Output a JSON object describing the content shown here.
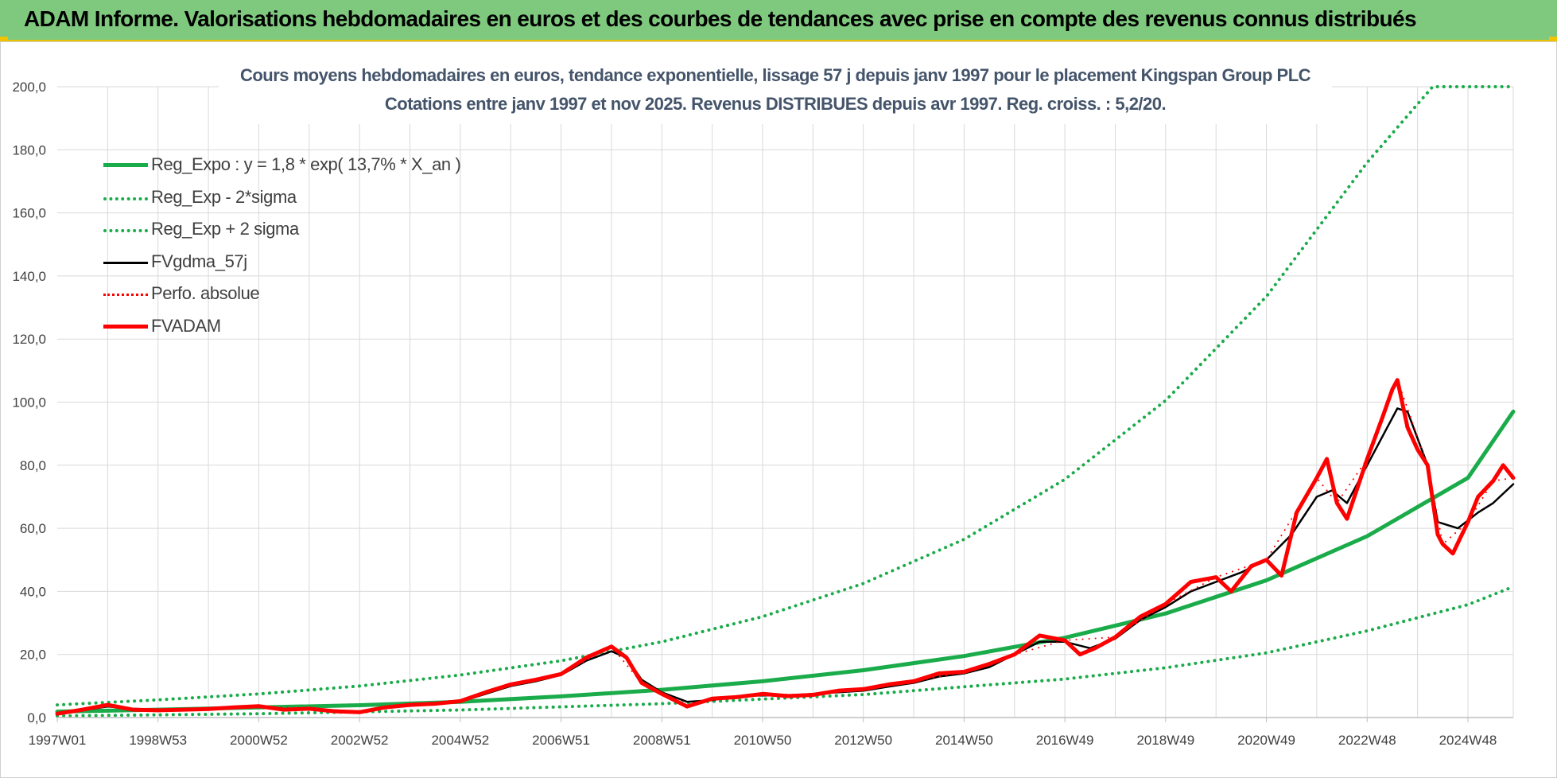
{
  "header": {
    "title": "ADAM Informe. Valorisations hebdomadaires en euros et des courbes de tendances avec prise en compte des revenus connus distribués"
  },
  "colors": {
    "banner": "#7ec97e",
    "reg_expo": "#1aab4a",
    "fvgdma": "#000000",
    "fvadam": "#ff0000",
    "perfo": "#ff0000",
    "grid": "#d9d9d9"
  },
  "chart_data": {
    "type": "line",
    "title": "Cours moyens hebdomadaires en euros, tendance exponentielle, lissage 57 j depuis janv 1997 pour le placement Kingspan Group PLC",
    "subtitle": "Cotations entre janv 1997 et nov 2025. Revenus DISTRIBUES depuis avr 1997. Reg. croiss. : 5,2/20.",
    "xlabel": "",
    "ylabel": "",
    "ylim": [
      0,
      200
    ],
    "xlim": [
      1997.0,
      2025.9
    ],
    "grid": true,
    "legend_position": "top-left",
    "yticks": [
      "0,0",
      "20,0",
      "40,0",
      "60,0",
      "80,0",
      "100,0",
      "120,0",
      "140,0",
      "160,0",
      "180,0",
      "200,0"
    ],
    "xticks": [
      {
        "label": "1997W01",
        "x": 1997.0
      },
      {
        "label": "1998W53",
        "x": 1999.0
      },
      {
        "label": "2000W52",
        "x": 2001.0
      },
      {
        "label": "2002W52",
        "x": 2003.0
      },
      {
        "label": "2004W52",
        "x": 2005.0
      },
      {
        "label": "2006W51",
        "x": 2007.0
      },
      {
        "label": "2008W51",
        "x": 2009.0
      },
      {
        "label": "2010W50",
        "x": 2011.0
      },
      {
        "label": "2012W50",
        "x": 2013.0
      },
      {
        "label": "2014W50",
        "x": 2015.0
      },
      {
        "label": "2016W49",
        "x": 2017.0
      },
      {
        "label": "2018W49",
        "x": 2019.0
      },
      {
        "label": "2020W49",
        "x": 2021.0
      },
      {
        "label": "2022W48",
        "x": 2023.0
      },
      {
        "label": "2024W48",
        "x": 2025.0
      }
    ],
    "series": [
      {
        "name": "Reg_Expo : y = 1,8 * exp( 13,7% *  X_an )",
        "style": "solid-thick",
        "color": "#1aab4a",
        "points": [
          [
            1997.0,
            1.9
          ],
          [
            1999,
            2.5
          ],
          [
            2001,
            3.2
          ],
          [
            2003,
            3.9
          ],
          [
            2005,
            5.0
          ],
          [
            2007,
            6.7
          ],
          [
            2009,
            8.8
          ],
          [
            2011,
            11.5
          ],
          [
            2013,
            15.0
          ],
          [
            2015,
            19.5
          ],
          [
            2017,
            25.3
          ],
          [
            2019,
            33.0
          ],
          [
            2021,
            43.5
          ],
          [
            2023,
            57.5
          ],
          [
            2025,
            76.0
          ],
          [
            2025.9,
            97.0
          ]
        ]
      },
      {
        "name": "Reg_Exp - 2*sigma",
        "style": "dotted",
        "color": "#1aab4a",
        "points": [
          [
            1997.0,
            0.5
          ],
          [
            2001,
            1.2
          ],
          [
            2005,
            2.4
          ],
          [
            2009,
            4.4
          ],
          [
            2013,
            7.3
          ],
          [
            2017,
            12.2
          ],
          [
            2019,
            15.8
          ],
          [
            2021,
            20.5
          ],
          [
            2023,
            27.5
          ],
          [
            2025,
            35.8
          ],
          [
            2025.9,
            41.5
          ]
        ]
      },
      {
        "name": "Reg_Exp + 2 sigma",
        "style": "dotted",
        "color": "#1aab4a",
        "points": [
          [
            1997.0,
            4.0
          ],
          [
            1999,
            5.6
          ],
          [
            2001,
            7.5
          ],
          [
            2003,
            10.0
          ],
          [
            2005,
            13.5
          ],
          [
            2007,
            18.0
          ],
          [
            2009,
            24.0
          ],
          [
            2011,
            32.0
          ],
          [
            2013,
            42.5
          ],
          [
            2015,
            56.5
          ],
          [
            2017,
            75.5
          ],
          [
            2019,
            100.5
          ],
          [
            2021,
            133.5
          ],
          [
            2023,
            176.0
          ],
          [
            2024.3,
            200.0
          ],
          [
            2025.9,
            200.0
          ]
        ]
      },
      {
        "name": "FVgdma_57j",
        "style": "solid",
        "color": "#000000",
        "points": [
          [
            1997.0,
            1.5
          ],
          [
            1997.5,
            2.3
          ],
          [
            1998.0,
            3.5
          ],
          [
            1998.5,
            2.8
          ],
          [
            1999.0,
            2.5
          ],
          [
            1999.5,
            2.6
          ],
          [
            2000.0,
            2.6
          ],
          [
            2000.5,
            3.0
          ],
          [
            2001.0,
            3.3
          ],
          [
            2001.5,
            2.8
          ],
          [
            2002.0,
            2.8
          ],
          [
            2002.5,
            2.3
          ],
          [
            2003.0,
            1.8
          ],
          [
            2003.5,
            3.0
          ],
          [
            2004.0,
            3.8
          ],
          [
            2004.5,
            4.2
          ],
          [
            2005.0,
            5.0
          ],
          [
            2005.5,
            7.5
          ],
          [
            2006.0,
            10.0
          ],
          [
            2006.5,
            11.5
          ],
          [
            2007.0,
            13.5
          ],
          [
            2007.5,
            18.0
          ],
          [
            2008.0,
            21.0
          ],
          [
            2008.3,
            19.0
          ],
          [
            2008.6,
            12.0
          ],
          [
            2009.0,
            8.0
          ],
          [
            2009.5,
            5.0
          ],
          [
            2010.0,
            5.5
          ],
          [
            2010.5,
            6.8
          ],
          [
            2011.0,
            7.0
          ],
          [
            2011.5,
            7.0
          ],
          [
            2012.0,
            7.5
          ],
          [
            2012.5,
            8.0
          ],
          [
            2013.0,
            8.5
          ],
          [
            2013.5,
            9.8
          ],
          [
            2014.0,
            11.0
          ],
          [
            2014.5,
            13.0
          ],
          [
            2015.0,
            14.0
          ],
          [
            2015.5,
            16.0
          ],
          [
            2016.0,
            20.0
          ],
          [
            2016.5,
            24.0
          ],
          [
            2017.0,
            24.0
          ],
          [
            2017.5,
            22.0
          ],
          [
            2018.0,
            25.0
          ],
          [
            2018.5,
            31.0
          ],
          [
            2019.0,
            35.0
          ],
          [
            2019.5,
            40.0
          ],
          [
            2020.0,
            43.0
          ],
          [
            2020.5,
            46.0
          ],
          [
            2021.0,
            50.0
          ],
          [
            2021.5,
            58.0
          ],
          [
            2022.0,
            70.0
          ],
          [
            2022.3,
            72.0
          ],
          [
            2022.6,
            68.0
          ],
          [
            2023.0,
            80.0
          ],
          [
            2023.4,
            92.0
          ],
          [
            2023.6,
            98.0
          ],
          [
            2023.8,
            97.0
          ],
          [
            2024.2,
            80.0
          ],
          [
            2024.4,
            62.0
          ],
          [
            2024.8,
            60.0
          ],
          [
            2025.2,
            65.0
          ],
          [
            2025.5,
            68.0
          ],
          [
            2025.9,
            74.0
          ]
        ]
      },
      {
        "name": "Perfo. absolue",
        "style": "dotted",
        "color": "#ff0000",
        "points": [
          [
            1997.0,
            1.2
          ],
          [
            1997.5,
            2.5
          ],
          [
            1998.0,
            4.0
          ],
          [
            1998.5,
            2.5
          ],
          [
            1999.0,
            2.3
          ],
          [
            2000.0,
            2.7
          ],
          [
            2001.0,
            3.6
          ],
          [
            2002.0,
            2.8
          ],
          [
            2003.0,
            1.7
          ],
          [
            2004.0,
            4.0
          ],
          [
            2005.0,
            5.2
          ],
          [
            2006.0,
            10.5
          ],
          [
            2007.0,
            13.8
          ],
          [
            2008.0,
            22.5
          ],
          [
            2008.6,
            11.0
          ],
          [
            2009.0,
            7.5
          ],
          [
            2009.5,
            3.5
          ],
          [
            2010.0,
            6.0
          ],
          [
            2011.0,
            7.5
          ],
          [
            2012.0,
            7.2
          ],
          [
            2013.0,
            9.0
          ],
          [
            2014.0,
            11.5
          ],
          [
            2015.0,
            14.5
          ],
          [
            2016.0,
            20.0
          ],
          [
            2017.0,
            24.5
          ],
          [
            2018.0,
            25.5
          ],
          [
            2019.0,
            36.0
          ],
          [
            2020.0,
            44.5
          ],
          [
            2021.0,
            50.0
          ],
          [
            2022.0,
            76.0
          ],
          [
            2022.4,
            68.0
          ],
          [
            2023.0,
            82.0
          ],
          [
            2023.6,
            107.0
          ],
          [
            2024.2,
            80.0
          ],
          [
            2024.5,
            55.0
          ],
          [
            2025.0,
            62.0
          ],
          [
            2025.5,
            75.0
          ],
          [
            2025.9,
            76.0
          ]
        ]
      },
      {
        "name": "FVADAM",
        "style": "solid-thick",
        "color": "#ff0000",
        "points": [
          [
            1997.0,
            1.2
          ],
          [
            1997.5,
            2.5
          ],
          [
            1998.0,
            4.0
          ],
          [
            1998.5,
            2.5
          ],
          [
            1999.0,
            2.3
          ],
          [
            1999.5,
            2.5
          ],
          [
            2000.0,
            2.7
          ],
          [
            2000.5,
            3.2
          ],
          [
            2001.0,
            3.6
          ],
          [
            2001.5,
            2.5
          ],
          [
            2002.0,
            2.8
          ],
          [
            2002.5,
            2.0
          ],
          [
            2003.0,
            1.7
          ],
          [
            2003.5,
            3.2
          ],
          [
            2004.0,
            4.0
          ],
          [
            2004.5,
            4.4
          ],
          [
            2005.0,
            5.2
          ],
          [
            2005.5,
            8.0
          ],
          [
            2006.0,
            10.5
          ],
          [
            2006.5,
            12.0
          ],
          [
            2007.0,
            13.8
          ],
          [
            2007.5,
            19.0
          ],
          [
            2008.0,
            22.5
          ],
          [
            2008.3,
            19.0
          ],
          [
            2008.6,
            11.0
          ],
          [
            2009.0,
            7.5
          ],
          [
            2009.5,
            3.5
          ],
          [
            2010.0,
            6.0
          ],
          [
            2010.5,
            6.5
          ],
          [
            2011.0,
            7.5
          ],
          [
            2011.5,
            6.8
          ],
          [
            2012.0,
            7.2
          ],
          [
            2012.5,
            8.5
          ],
          [
            2013.0,
            9.0
          ],
          [
            2013.5,
            10.5
          ],
          [
            2014.0,
            11.5
          ],
          [
            2014.5,
            14.0
          ],
          [
            2015.0,
            14.5
          ],
          [
            2015.5,
            17.0
          ],
          [
            2016.0,
            20.0
          ],
          [
            2016.5,
            26.0
          ],
          [
            2017.0,
            24.5
          ],
          [
            2017.3,
            20.0
          ],
          [
            2017.6,
            22.0
          ],
          [
            2018.0,
            25.5
          ],
          [
            2018.5,
            32.0
          ],
          [
            2019.0,
            36.0
          ],
          [
            2019.5,
            43.0
          ],
          [
            2020.0,
            44.5
          ],
          [
            2020.3,
            40.0
          ],
          [
            2020.7,
            48.0
          ],
          [
            2021.0,
            50.0
          ],
          [
            2021.3,
            45.0
          ],
          [
            2021.6,
            65.0
          ],
          [
            2022.0,
            76.0
          ],
          [
            2022.2,
            82.0
          ],
          [
            2022.4,
            68.0
          ],
          [
            2022.6,
            63.0
          ],
          [
            2023.0,
            82.0
          ],
          [
            2023.3,
            95.0
          ],
          [
            2023.5,
            104.0
          ],
          [
            2023.6,
            107.0
          ],
          [
            2023.8,
            92.0
          ],
          [
            2024.0,
            85.0
          ],
          [
            2024.2,
            80.0
          ],
          [
            2024.4,
            58.0
          ],
          [
            2024.5,
            55.0
          ],
          [
            2024.7,
            52.0
          ],
          [
            2025.0,
            62.0
          ],
          [
            2025.2,
            70.0
          ],
          [
            2025.5,
            75.0
          ],
          [
            2025.7,
            80.0
          ],
          [
            2025.9,
            76.0
          ]
        ]
      }
    ]
  }
}
